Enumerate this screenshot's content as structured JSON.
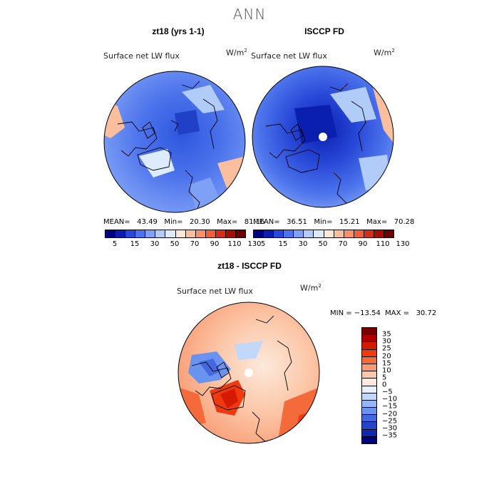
{
  "title": "ANN",
  "panels": {
    "model": {
      "title": "zt18 (yrs 1-1)",
      "variable": "Surface net LW flux",
      "units": "W/m",
      "units_sup": "2",
      "stats": "MEAN=   43.49   Min=   20.30   Max=   81.16"
    },
    "obs": {
      "title": "ISCCP FD",
      "variable": "Surface net LW flux",
      "units": "W/m",
      "units_sup": "2",
      "stats": "MEAN=   36.51   Min=   15.21   Max=   70.28"
    },
    "diff": {
      "title": "zt18 - ISCCP FD",
      "variable": "Surface net LW flux",
      "units": "W/m",
      "units_sup": "2",
      "stats": "MIN = −13.54  MAX =   30.72"
    }
  },
  "colorbar_abs": {
    "colors": [
      "#00007f",
      "#0a1fb0",
      "#2848d8",
      "#4d74ec",
      "#7ea0f6",
      "#b2ccfa",
      "#dcebfd",
      "#ffe7d6",
      "#fcbf9e",
      "#f8906b",
      "#ef5f3e",
      "#d72d18",
      "#a50f06",
      "#6b0000"
    ],
    "labels": [
      "5",
      "15",
      "30",
      "50",
      "70",
      "90",
      "110",
      "130"
    ]
  },
  "colorbar_diff": {
    "colors": [
      "#7a0000",
      "#b00000",
      "#d41b00",
      "#ef3a10",
      "#f56a3a",
      "#f99a72",
      "#fcc7a8",
      "#fde9dc",
      "#e6f0fc",
      "#c2d8fb",
      "#93b6f6",
      "#6a92ef",
      "#4269e2",
      "#2444cc",
      "#1026b4",
      "#000080"
    ],
    "labels": [
      "35",
      "30",
      "25",
      "20",
      "15",
      "10",
      "5",
      "0",
      "−5",
      "−10",
      "−15",
      "−20",
      "−25",
      "−30",
      "−35"
    ]
  }
}
